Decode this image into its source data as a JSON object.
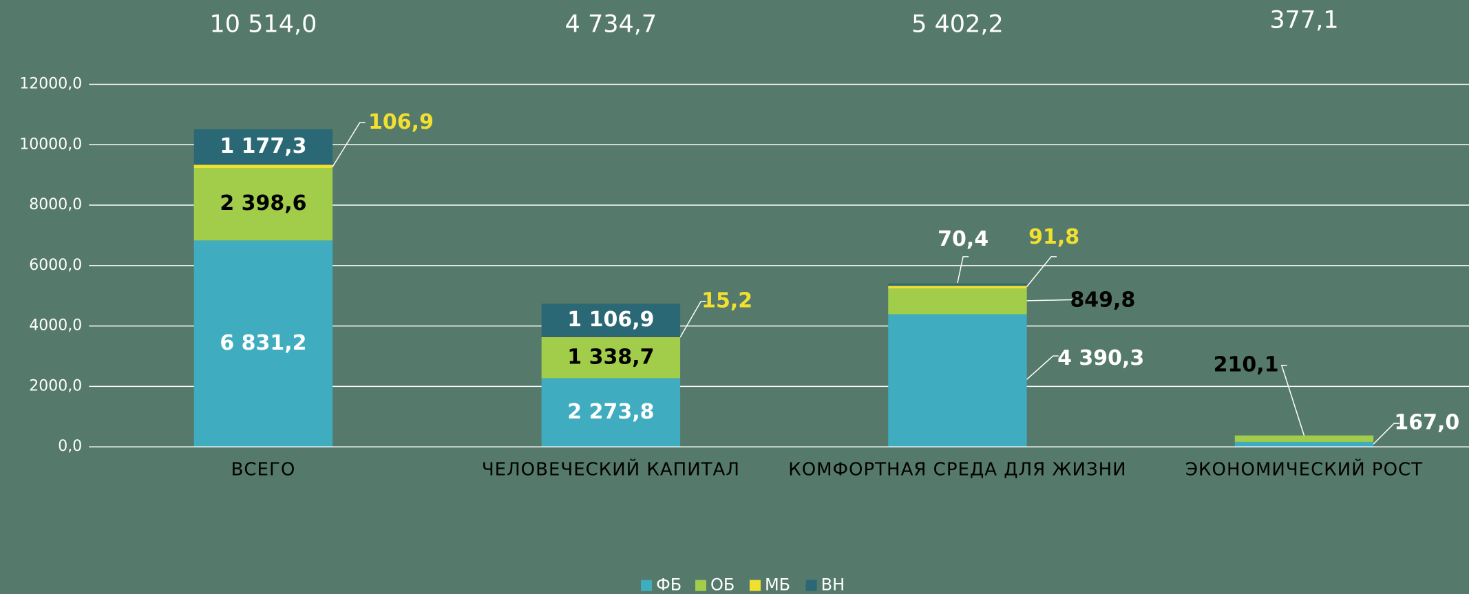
{
  "chart_data": {
    "type": "stacked_bar",
    "categories": [
      "ВСЕГО",
      "ЧЕЛОВЕЧЕСКИЙ КАПИТАЛ",
      "КОМФОРТНАЯ СРЕДА ДЛЯ ЖИЗНИ",
      "ЭКОНОМИЧЕСКИЙ РОСТ"
    ],
    "series": [
      {
        "name": "ФБ",
        "color": "#3fadbf",
        "label_color": "#ffffff",
        "values": [
          6831.2,
          2273.8,
          4390.3,
          167.0
        ],
        "value_labels": [
          "6 831,2",
          "2 273,8",
          "4 390,3",
          "167,0"
        ]
      },
      {
        "name": "ОБ",
        "color": "#a2cd4a",
        "label_color": "#000000",
        "values": [
          2398.6,
          1338.7,
          849.8,
          210.1
        ],
        "value_labels": [
          "2 398,6",
          "1 338,7",
          "849,8",
          "210,1"
        ]
      },
      {
        "name": "МБ",
        "color": "#f2e030",
        "label_color": "#f2e030",
        "values": [
          106.9,
          15.2,
          91.8,
          0
        ],
        "value_labels": [
          "106,9",
          "15,2",
          "91,8",
          null
        ]
      },
      {
        "name": "ВН",
        "color": "#2a6875",
        "label_color": "#ffffff",
        "values": [
          1177.3,
          1106.9,
          70.4,
          0
        ],
        "value_labels": [
          "1 177,3",
          "1 106,9",
          "70,4",
          null
        ]
      }
    ],
    "totals": [
      10514.0,
      4734.7,
      5402.2,
      377.1
    ],
    "total_labels": [
      "10 514,0",
      "4 734,7",
      "5 402,2",
      "377,1"
    ],
    "ylim": [
      0,
      12000
    ],
    "yticks": [
      {
        "value": 0,
        "label": "0,0"
      },
      {
        "value": 2000,
        "label": "2000,0"
      },
      {
        "value": 4000,
        "label": "4000,0"
      },
      {
        "value": 6000,
        "label": "6000,0"
      },
      {
        "value": 8000,
        "label": "8000,0"
      },
      {
        "value": 10000,
        "label": "10000,0"
      },
      {
        "value": 12000,
        "label": "12000,0"
      }
    ],
    "grid": true,
    "legend": "bottom"
  }
}
